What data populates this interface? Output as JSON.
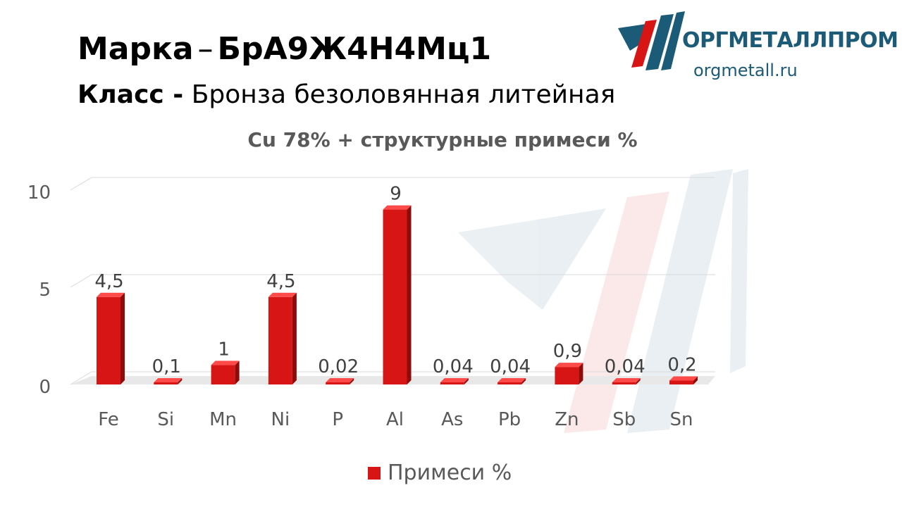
{
  "header": {
    "line1_label": "Марка",
    "line1_sep": "–",
    "line1_value": "БрА9Ж4Н4Мц1",
    "line2_label": "Класс -",
    "line2_value": "Бронза безоловянная литейная"
  },
  "logo": {
    "name": "ОРГМЕТАЛЛПРОМ",
    "url": "orgmetall.ru"
  },
  "colors": {
    "bar": "#d81515",
    "bar_dark": "#8e0b0b",
    "bar_top": "#ff4a4a",
    "brand": "#1c5b78",
    "text_gray": "#595959"
  },
  "chart_data": {
    "type": "bar",
    "title": "Cu 78% + структурные примеси %",
    "categories": [
      "Fe",
      "Si",
      "Mn",
      "Ni",
      "P",
      "Al",
      "As",
      "Pb",
      "Zn",
      "Sb",
      "Sn"
    ],
    "series": [
      {
        "name": "Примеси %",
        "values": [
          4.5,
          0.1,
          1,
          4.5,
          0.02,
          9,
          0.04,
          0.04,
          0.9,
          0.04,
          0.2
        ],
        "labels": [
          "4,5",
          "0,1",
          "1",
          "4,5",
          "0,02",
          "9",
          "0,04",
          "0,04",
          "0,9",
          "0,04",
          "0,2"
        ]
      }
    ],
    "y_ticks": [
      "0",
      "5",
      "10"
    ],
    "ylim": [
      0,
      10
    ],
    "grid": true,
    "legend_position": "bottom"
  }
}
